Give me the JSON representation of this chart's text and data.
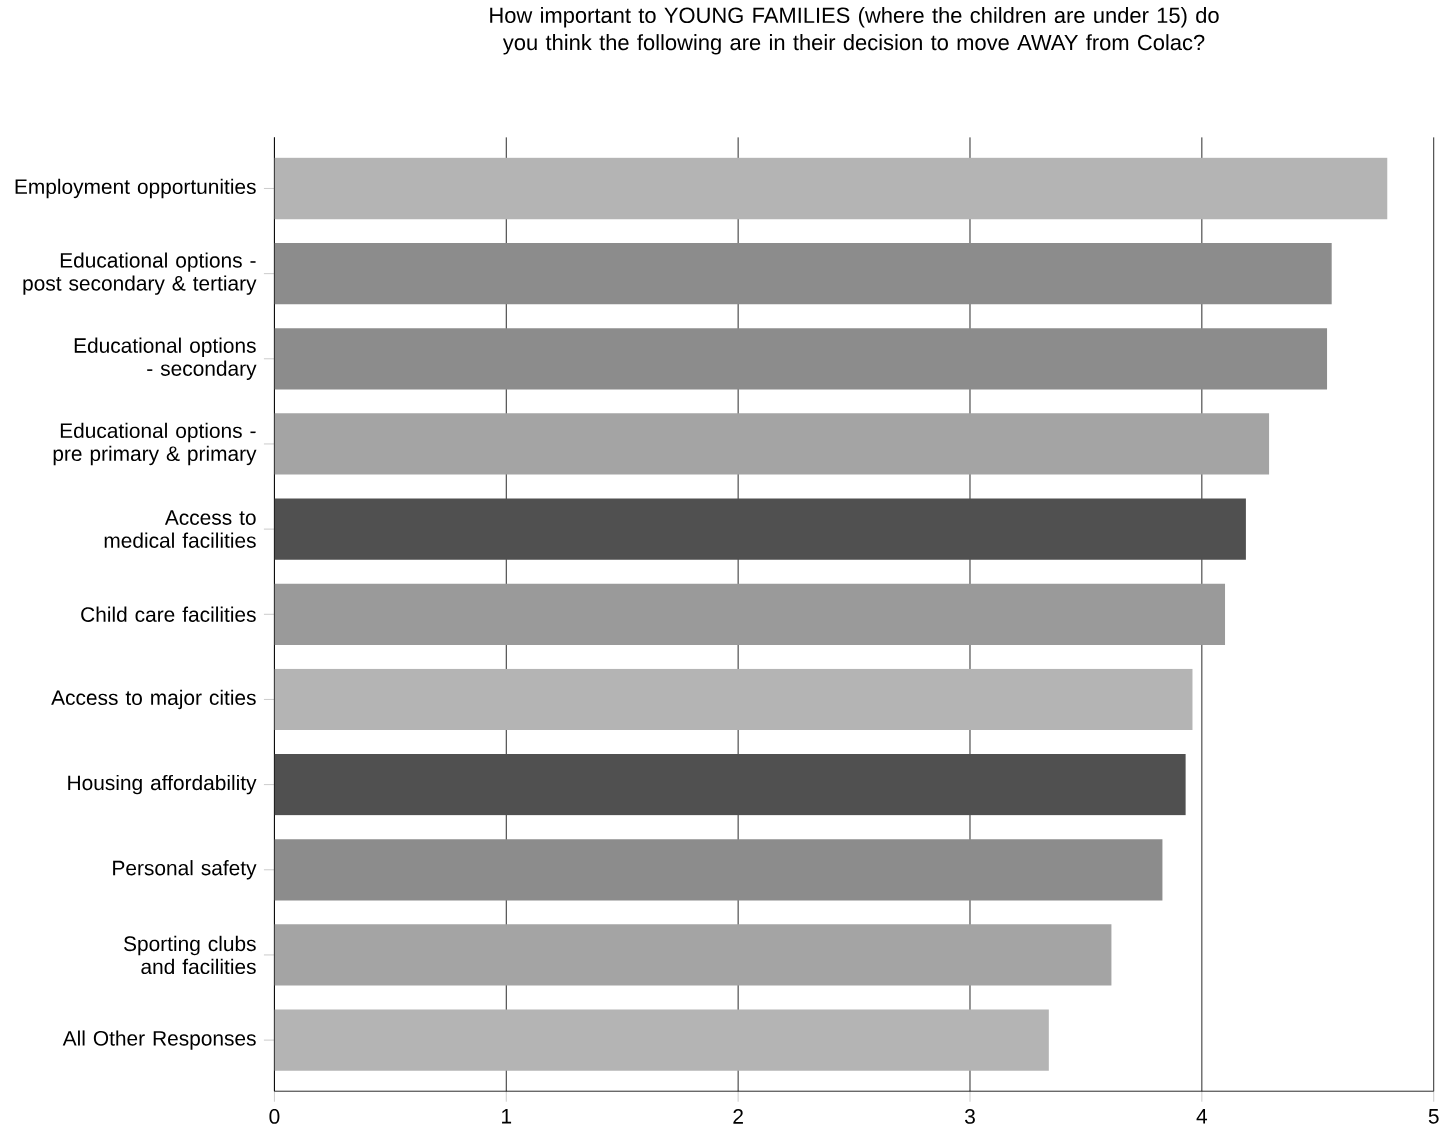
{
  "chart_data": {
    "type": "bar",
    "orientation": "horizontal",
    "title": "How important to YOUNG FAMILIES (where the children are under 15) do you think the following are in their decision to move AWAY from Colac?",
    "categories": [
      "Employment opportunities",
      "Educational options - post secondary & tertiary",
      "Educational options - secondary",
      "Educational options - pre primary & primary",
      "Access to medical facilities",
      "Child care facilities",
      "Access to major cities",
      "Housing affordability",
      "Personal safety",
      "Sporting clubs and facilities",
      "All Other Responses"
    ],
    "values": [
      4.8,
      4.56,
      4.54,
      4.29,
      4.19,
      4.1,
      3.96,
      3.93,
      3.83,
      3.61,
      3.34
    ],
    "colors": [
      "#b4b4b4",
      "#8c8c8c",
      "#8c8c8c",
      "#a4a4a4",
      "#505050",
      "#9a9a9a",
      "#b4b4b4",
      "#505050",
      "#8c8c8c",
      "#a4a4a4",
      "#b4b4b4"
    ],
    "xlim": [
      0,
      5
    ],
    "xticks": [
      0,
      1,
      2,
      3,
      4,
      5
    ],
    "grid": "x"
  }
}
